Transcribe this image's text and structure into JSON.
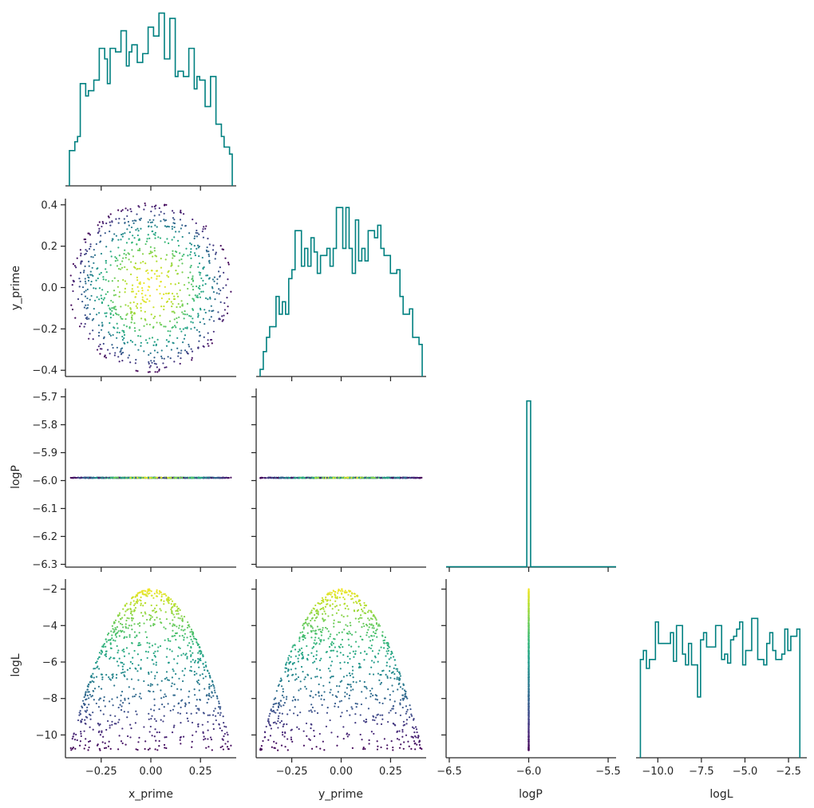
{
  "chart_data": {
    "type": "corner",
    "variables": [
      "x_prime",
      "y_prime",
      "logP",
      "logL"
    ],
    "axis_labels": {
      "x": [
        "x_prime",
        "y_prime",
        "logP",
        "logL"
      ],
      "y": [
        "",
        "y_prime",
        "logP",
        "logL"
      ]
    },
    "ticks": {
      "x_prime": [
        "−0.25",
        "0.00",
        "0.25"
      ],
      "y_prime": [
        "−0.4",
        "−0.2",
        "0.0",
        "0.2",
        "0.4"
      ],
      "y_prime_x": [
        "−0.25",
        "0.00",
        "0.25"
      ],
      "logP_y": [
        "−5.7",
        "−5.8",
        "−5.9",
        "−6.0",
        "−6.1",
        "−6.2",
        "−6.3"
      ],
      "logP_x": [
        "−6.5",
        "−6.0",
        "−5.5"
      ],
      "logL_y": [
        "−2",
        "−4",
        "−6",
        "−8",
        "−10"
      ],
      "logL_x": [
        "−10.0",
        "−7.5",
        "−5.0",
        "−2.5"
      ]
    },
    "ranges": {
      "x_prime": [
        -0.43,
        0.43
      ],
      "y_prime": [
        -0.43,
        0.43
      ],
      "logP": [
        -6.31,
        -5.67
      ],
      "logP_hist": [
        -6.52,
        -5.45
      ],
      "logL": [
        -11.25,
        -1.45
      ]
    },
    "histograms": {
      "x_prime": {
        "range": [
          -0.41,
          0.41
        ],
        "heights": [
          0.2,
          0.2,
          0.25,
          0.28,
          0.58,
          0.58,
          0.51,
          0.54,
          0.54,
          0.6,
          0.6,
          0.78,
          0.78,
          0.72,
          0.58,
          0.78,
          0.78,
          0.76,
          0.76,
          0.88,
          0.88,
          0.68,
          0.76,
          0.8,
          0.8,
          0.7,
          0.7,
          0.75,
          0.75,
          0.9,
          0.9,
          0.85,
          0.85,
          0.98,
          0.98,
          0.72,
          0.72,
          0.95,
          0.95,
          0.62,
          0.65,
          0.65,
          0.62,
          0.62,
          0.78,
          0.78,
          0.55,
          0.62,
          0.6,
          0.6,
          0.45,
          0.45,
          0.62,
          0.62,
          0.35,
          0.35,
          0.28,
          0.22,
          0.22,
          0.18
        ]
      },
      "y_prime": {
        "range": [
          -0.41,
          0.41
        ],
        "heights": [
          0.04,
          0.14,
          0.22,
          0.28,
          0.28,
          0.45,
          0.35,
          0.42,
          0.35,
          0.55,
          0.6,
          0.82,
          0.82,
          0.62,
          0.72,
          0.62,
          0.78,
          0.7,
          0.58,
          0.68,
          0.68,
          0.72,
          0.62,
          0.72,
          0.95,
          0.95,
          0.72,
          0.95,
          0.72,
          0.58,
          0.88,
          0.65,
          0.72,
          0.65,
          0.82,
          0.82,
          0.78,
          0.85,
          0.72,
          0.68,
          0.68,
          0.58,
          0.58,
          0.6,
          0.45,
          0.35,
          0.35,
          0.38,
          0.22,
          0.22,
          0.18
        ]
      },
      "logP": {
        "range": [
          -6.52,
          -5.45
        ],
        "spike_at": -6.0,
        "spike_height": 1.0
      },
      "logL": {
        "range": [
          -11.0,
          -1.85
        ],
        "heights": [
          0.55,
          0.6,
          0.5,
          0.55,
          0.55,
          0.76,
          0.64,
          0.64,
          0.64,
          0.64,
          0.7,
          0.54,
          0.74,
          0.74,
          0.58,
          0.52,
          0.64,
          0.52,
          0.52,
          0.34,
          0.66,
          0.7,
          0.62,
          0.62,
          0.62,
          0.74,
          0.74,
          0.55,
          0.58,
          0.53,
          0.66,
          0.68,
          0.72,
          0.76,
          0.52,
          0.6,
          0.6,
          0.78,
          0.78,
          0.55,
          0.55,
          0.52,
          0.64,
          0.7,
          0.6,
          0.55,
          0.55,
          0.58,
          0.72,
          0.6,
          0.68,
          0.68,
          0.72
        ]
      }
    },
    "scatter": {
      "n_points": 900,
      "region": "disk",
      "radius": 0.41,
      "logP_value": -5.99,
      "logL_model": "logL = -2 - 52.6 * (x_prime^2 + y_prime^2)",
      "colormap": "viridis",
      "color_by": "logL"
    },
    "colors": {
      "hist_line": "#008080",
      "axis": "#262626"
    },
    "grid": false,
    "legend": "none"
  }
}
